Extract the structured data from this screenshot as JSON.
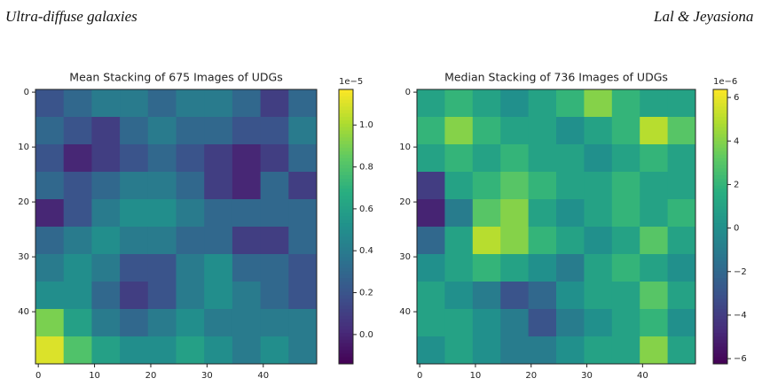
{
  "header": {
    "left": "Ultra-diffuse galaxies",
    "right": "Lal & Jeyasiona"
  },
  "chart_data": [
    {
      "type": "heatmap",
      "title": "Mean Stacking of 675 Images of UDGs",
      "colormap": "viridis",
      "xlim": [
        -0.5,
        49.5
      ],
      "ylim": [
        49.5,
        -0.5
      ],
      "xticks": [
        0,
        10,
        20,
        30,
        40
      ],
      "yticks": [
        0,
        10,
        20,
        30,
        40
      ],
      "clim": [
        -0.14,
        1.17
      ],
      "cticks": [
        {
          "value": 0,
          "label": "0.0"
        },
        0.2,
        0.4,
        0.6,
        0.8,
        {
          "value": 1,
          "label": "1.0"
        }
      ],
      "colorbar_offset": "1e−5",
      "values": [
        [
          0.2,
          0.3,
          0.4,
          0.4,
          0.3,
          0.4,
          0.4,
          0.3,
          0.1,
          0.3
        ],
        [
          0.3,
          0.2,
          0.1,
          0.3,
          0.4,
          0.3,
          0.3,
          0.2,
          0.2,
          0.4
        ],
        [
          0.2,
          0.0,
          0.1,
          0.2,
          0.3,
          0.2,
          0.1,
          0.0,
          0.1,
          0.3
        ],
        [
          0.3,
          0.2,
          0.3,
          0.4,
          0.4,
          0.3,
          0.1,
          0.0,
          0.3,
          0.1
        ],
        [
          0.0,
          0.2,
          0.4,
          0.5,
          0.5,
          0.4,
          0.3,
          0.3,
          0.3,
          0.3
        ],
        [
          0.3,
          0.4,
          0.5,
          0.4,
          0.4,
          0.3,
          0.3,
          0.1,
          0.1,
          0.3
        ],
        [
          0.4,
          0.5,
          0.4,
          0.2,
          0.2,
          0.4,
          0.5,
          0.3,
          0.3,
          0.2
        ],
        [
          0.5,
          0.5,
          0.3,
          0.1,
          0.2,
          0.4,
          0.5,
          0.4,
          0.3,
          0.2
        ],
        [
          0.9,
          0.6,
          0.4,
          0.3,
          0.4,
          0.5,
          0.4,
          0.4,
          0.4,
          0.4
        ],
        [
          1.1,
          0.8,
          0.6,
          0.5,
          0.5,
          0.6,
          0.5,
          0.4,
          0.5,
          0.4
        ]
      ]
    },
    {
      "type": "heatmap",
      "title": "Median Stacking of 736 Images of UDGs",
      "colormap": "viridis",
      "xlim": [
        -0.5,
        49.5
      ],
      "ylim": [
        49.5,
        -0.5
      ],
      "xticks": [
        0,
        10,
        20,
        30,
        40
      ],
      "yticks": [
        0,
        10,
        20,
        30,
        40
      ],
      "clim": [
        -6.24,
        6.37
      ],
      "cticks": [
        {
          "value": -6,
          "label": "−6"
        },
        {
          "value": -4,
          "label": "−4"
        },
        {
          "value": -2,
          "label": "−2"
        },
        0,
        2,
        4,
        6
      ],
      "colorbar_offset": "1e−6",
      "values": [
        [
          1,
          2,
          1,
          0,
          1,
          2,
          4,
          2,
          1,
          1
        ],
        [
          2,
          4,
          2,
          1,
          1,
          0,
          1,
          2,
          5,
          3
        ],
        [
          1,
          2,
          1,
          2,
          1,
          1,
          0,
          1,
          2,
          1
        ],
        [
          -4,
          1,
          2,
          3,
          2,
          1,
          1,
          2,
          1,
          1
        ],
        [
          -5,
          -1,
          3,
          4,
          1,
          0,
          1,
          2,
          1,
          2
        ],
        [
          -2,
          1,
          5,
          4,
          2,
          1,
          0,
          1,
          3,
          1
        ],
        [
          0,
          1,
          2,
          1,
          0,
          -1,
          1,
          2,
          1,
          0
        ],
        [
          1,
          0,
          -1,
          -3,
          -2,
          0,
          1,
          1,
          3,
          1
        ],
        [
          1,
          1,
          0,
          -1,
          -3,
          -1,
          0,
          1,
          2,
          0
        ],
        [
          0,
          1,
          0,
          -1,
          -1,
          0,
          1,
          1,
          4,
          1
        ]
      ]
    }
  ]
}
